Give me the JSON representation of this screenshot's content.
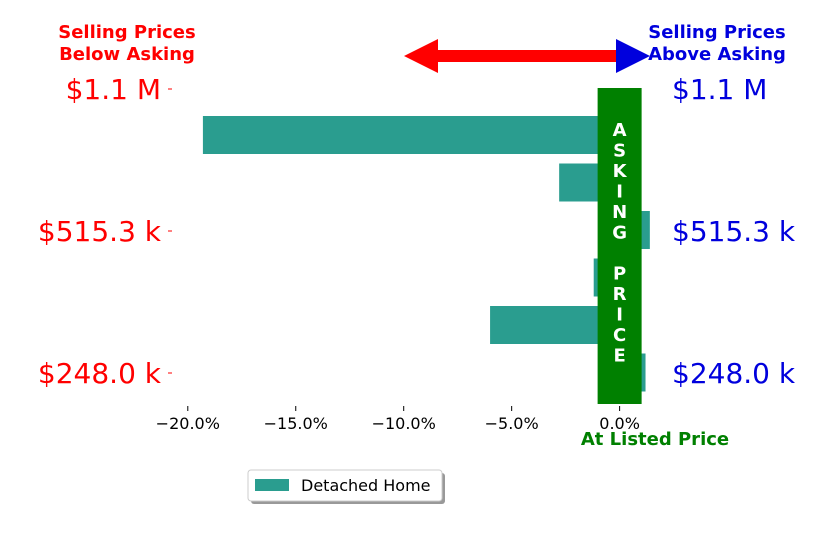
{
  "header": {
    "left_line1": "Selling Prices",
    "left_line2": "Below Asking",
    "right_line1": "Selling Prices",
    "right_line2": "Above Asking"
  },
  "asking_label": [
    "A",
    "S",
    "K",
    "I",
    "N",
    "G",
    "",
    "P",
    "R",
    "I",
    "C",
    "E"
  ],
  "listed_label": "At Listed Price",
  "colors": {
    "below": "#ff0000",
    "above": "#0000dd",
    "bar": "#2a9d8f",
    "asking": "#008000"
  },
  "chart_data": {
    "type": "bar",
    "orientation": "horizontal",
    "series": [
      {
        "name": "Detached Home",
        "values": [
          -19.3,
          -2.8,
          1.4,
          -1.2,
          -6.0,
          1.2
        ]
      }
    ],
    "xlim": [
      -20.5,
      1.5
    ],
    "x_ticks": [
      -20,
      -15,
      -10,
      -5,
      0
    ],
    "x_tick_labels": [
      "−20.0%",
      "−15.0%",
      "−10.0%",
      "−5.0%",
      "0.0%"
    ],
    "y_tick_labels": [
      "$1.1 M",
      "$515.3 k",
      "$248.0 k"
    ],
    "legend_position": "lower center"
  }
}
